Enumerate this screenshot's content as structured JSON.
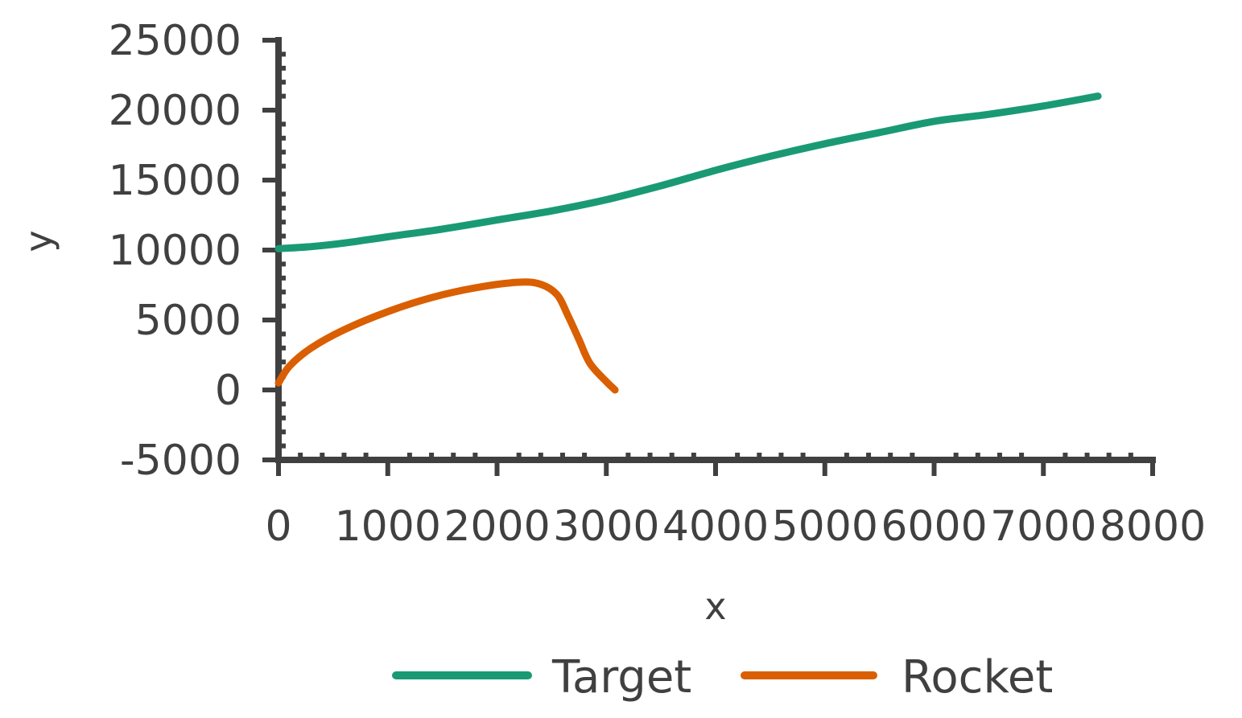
{
  "chart_data": {
    "type": "line",
    "xlabel": "x",
    "ylabel": "y",
    "xlim": [
      0,
      8000
    ],
    "ylim": [
      -5000,
      25000
    ],
    "x_ticks": [
      "0",
      "1000",
      "2000",
      "3000",
      "4000",
      "5000",
      "6000",
      "7000",
      "8000"
    ],
    "y_ticks": [
      "-5000",
      "0",
      "5000",
      "10000",
      "15000",
      "20000",
      "25000"
    ],
    "grid": false,
    "legend": "bottom",
    "series": [
      {
        "name": "Target",
        "color": "#1a9a74",
        "x": [
          0,
          300,
          600,
          1000,
          1500,
          2000,
          2500,
          3000,
          3500,
          4000,
          4500,
          5000,
          5500,
          6000,
          6500,
          7000,
          7500
        ],
        "y": [
          10100,
          10250,
          10500,
          10950,
          11500,
          12150,
          12800,
          13600,
          14600,
          15700,
          16700,
          17600,
          18400,
          19200,
          19700,
          20300,
          21000
        ]
      },
      {
        "name": "Rocket",
        "color": "#d95f02",
        "x": [
          0,
          100,
          300,
          600,
          1000,
          1400,
          1800,
          2200,
          2400,
          2550,
          2650,
          2750,
          2850,
          3000,
          3080
        ],
        "y": [
          500,
          1700,
          3000,
          4300,
          5600,
          6600,
          7300,
          7700,
          7550,
          6800,
          5300,
          3600,
          1900,
          600,
          0
        ]
      }
    ]
  }
}
